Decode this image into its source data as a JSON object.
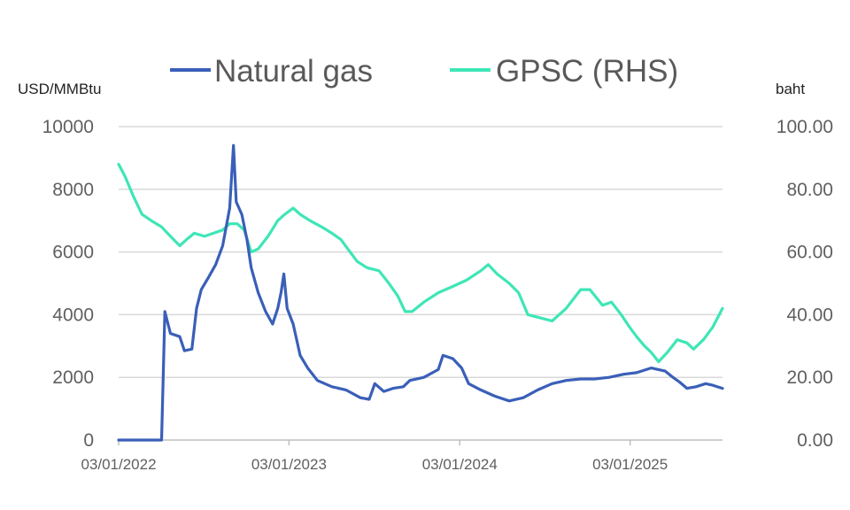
{
  "chart_data": {
    "type": "line",
    "legend_position": "top",
    "grid": true,
    "left_axis": {
      "unit_label": "USD/MMBtu",
      "ylim": [
        0,
        10000
      ],
      "ticks": [
        0,
        2000,
        4000,
        6000,
        8000,
        10000
      ],
      "tick_labels": [
        "0",
        "2000",
        "4000",
        "6000",
        "8000",
        "10000"
      ]
    },
    "right_axis": {
      "unit_label": "baht",
      "ylim": [
        0,
        100
      ],
      "ticks": [
        0,
        20,
        40,
        60,
        80,
        100
      ],
      "tick_labels": [
        "0.00",
        "20.00",
        "40.00",
        "60.00",
        "80.00",
        "100.00"
      ]
    },
    "x_axis": {
      "xlim": [
        "2022-03-01",
        "2025-09-15"
      ],
      "ticks": [
        "2022-03-01",
        "2023-03-01",
        "2024-03-01",
        "2025-03-01"
      ],
      "tick_labels": [
        "03/01/2022",
        "03/01/2023",
        "03/01/2024",
        "03/01/2025"
      ]
    },
    "series": [
      {
        "name": "Natural gas",
        "axis": "left",
        "color": "#3a5fb8",
        "points": [
          [
            "2022-03-01",
            0
          ],
          [
            "2022-06-01",
            0
          ],
          [
            "2022-06-08",
            4100
          ],
          [
            "2022-06-20",
            3400
          ],
          [
            "2022-07-10",
            3300
          ],
          [
            "2022-07-20",
            2850
          ],
          [
            "2022-08-05",
            2900
          ],
          [
            "2022-08-15",
            4200
          ],
          [
            "2022-08-25",
            4800
          ],
          [
            "2022-09-10",
            5200
          ],
          [
            "2022-09-25",
            5600
          ],
          [
            "2022-10-10",
            6200
          ],
          [
            "2022-10-25",
            7400
          ],
          [
            "2022-11-02",
            9400
          ],
          [
            "2022-11-08",
            7600
          ],
          [
            "2022-11-20",
            7200
          ],
          [
            "2022-12-01",
            6400
          ],
          [
            "2022-12-10",
            5500
          ],
          [
            "2022-12-25",
            4700
          ],
          [
            "2023-01-10",
            4100
          ],
          [
            "2023-01-25",
            3700
          ],
          [
            "2023-02-05",
            4200
          ],
          [
            "2023-02-12",
            4700
          ],
          [
            "2023-02-18",
            5300
          ],
          [
            "2023-02-25",
            4200
          ],
          [
            "2023-03-10",
            3700
          ],
          [
            "2023-03-25",
            2700
          ],
          [
            "2023-04-10",
            2300
          ],
          [
            "2023-05-01",
            1900
          ],
          [
            "2023-06-01",
            1700
          ],
          [
            "2023-07-01",
            1600
          ],
          [
            "2023-08-01",
            1350
          ],
          [
            "2023-08-20",
            1300
          ],
          [
            "2023-09-01",
            1800
          ],
          [
            "2023-09-20",
            1550
          ],
          [
            "2023-10-10",
            1650
          ],
          [
            "2023-11-01",
            1700
          ],
          [
            "2023-11-15",
            1900
          ],
          [
            "2023-12-15",
            2000
          ],
          [
            "2024-01-15",
            2250
          ],
          [
            "2024-01-25",
            2700
          ],
          [
            "2024-02-15",
            2600
          ],
          [
            "2024-03-05",
            2300
          ],
          [
            "2024-03-20",
            1800
          ],
          [
            "2024-04-15",
            1600
          ],
          [
            "2024-05-15",
            1400
          ],
          [
            "2024-06-15",
            1250
          ],
          [
            "2024-07-15",
            1350
          ],
          [
            "2024-08-15",
            1600
          ],
          [
            "2024-09-15",
            1800
          ],
          [
            "2024-10-15",
            1900
          ],
          [
            "2024-11-15",
            1950
          ],
          [
            "2024-12-15",
            1950
          ],
          [
            "2025-01-15",
            2000
          ],
          [
            "2025-02-15",
            2100
          ],
          [
            "2025-03-15",
            2150
          ],
          [
            "2025-04-15",
            2300
          ],
          [
            "2025-05-01",
            2250
          ],
          [
            "2025-05-15",
            2200
          ],
          [
            "2025-06-01",
            2000
          ],
          [
            "2025-06-15",
            1850
          ],
          [
            "2025-07-01",
            1650
          ],
          [
            "2025-07-20",
            1700
          ],
          [
            "2025-08-10",
            1800
          ],
          [
            "2025-08-25",
            1750
          ],
          [
            "2025-09-15",
            1650
          ]
        ]
      },
      {
        "name": "GPSC (RHS)",
        "axis": "right",
        "color": "#3ee6b6",
        "points": [
          [
            "2022-03-01",
            88
          ],
          [
            "2022-03-15",
            84
          ],
          [
            "2022-04-01",
            78
          ],
          [
            "2022-04-20",
            72
          ],
          [
            "2022-05-10",
            70
          ],
          [
            "2022-06-01",
            68
          ],
          [
            "2022-06-20",
            65
          ],
          [
            "2022-07-10",
            62
          ],
          [
            "2022-07-25",
            64
          ],
          [
            "2022-08-10",
            66
          ],
          [
            "2022-09-01",
            65
          ],
          [
            "2022-09-20",
            66
          ],
          [
            "2022-10-10",
            67
          ],
          [
            "2022-10-25",
            69
          ],
          [
            "2022-11-10",
            69
          ],
          [
            "2022-11-25",
            67
          ],
          [
            "2022-12-10",
            60
          ],
          [
            "2022-12-25",
            61
          ],
          [
            "2023-01-15",
            65
          ],
          [
            "2023-02-05",
            70
          ],
          [
            "2023-02-20",
            72
          ],
          [
            "2023-03-10",
            74
          ],
          [
            "2023-03-25",
            72
          ],
          [
            "2023-04-15",
            70
          ],
          [
            "2023-05-10",
            68
          ],
          [
            "2023-06-01",
            66
          ],
          [
            "2023-06-20",
            64
          ],
          [
            "2023-07-10",
            60
          ],
          [
            "2023-07-25",
            57
          ],
          [
            "2023-08-15",
            55
          ],
          [
            "2023-09-10",
            54
          ],
          [
            "2023-10-01",
            50
          ],
          [
            "2023-10-20",
            46
          ],
          [
            "2023-11-05",
            41
          ],
          [
            "2023-11-20",
            41
          ],
          [
            "2023-12-15",
            44
          ],
          [
            "2024-01-15",
            47
          ],
          [
            "2024-02-15",
            49
          ],
          [
            "2024-03-15",
            51
          ],
          [
            "2024-04-15",
            54
          ],
          [
            "2024-05-01",
            56
          ],
          [
            "2024-05-20",
            53
          ],
          [
            "2024-06-15",
            50
          ],
          [
            "2024-07-05",
            47
          ],
          [
            "2024-07-25",
            40
          ],
          [
            "2024-08-20",
            39
          ],
          [
            "2024-09-15",
            38
          ],
          [
            "2024-10-15",
            42
          ],
          [
            "2024-11-15",
            48
          ],
          [
            "2024-12-05",
            48
          ],
          [
            "2025-01-01",
            43
          ],
          [
            "2025-01-20",
            44
          ],
          [
            "2025-02-10",
            40
          ],
          [
            "2025-02-28",
            36
          ],
          [
            "2025-03-15",
            33
          ],
          [
            "2025-04-01",
            30
          ],
          [
            "2025-04-15",
            28
          ],
          [
            "2025-05-01",
            25
          ],
          [
            "2025-05-20",
            28
          ],
          [
            "2025-06-10",
            32
          ],
          [
            "2025-07-01",
            31
          ],
          [
            "2025-07-15",
            29
          ],
          [
            "2025-08-05",
            32
          ],
          [
            "2025-08-25",
            36
          ],
          [
            "2025-09-15",
            42
          ]
        ]
      }
    ]
  }
}
